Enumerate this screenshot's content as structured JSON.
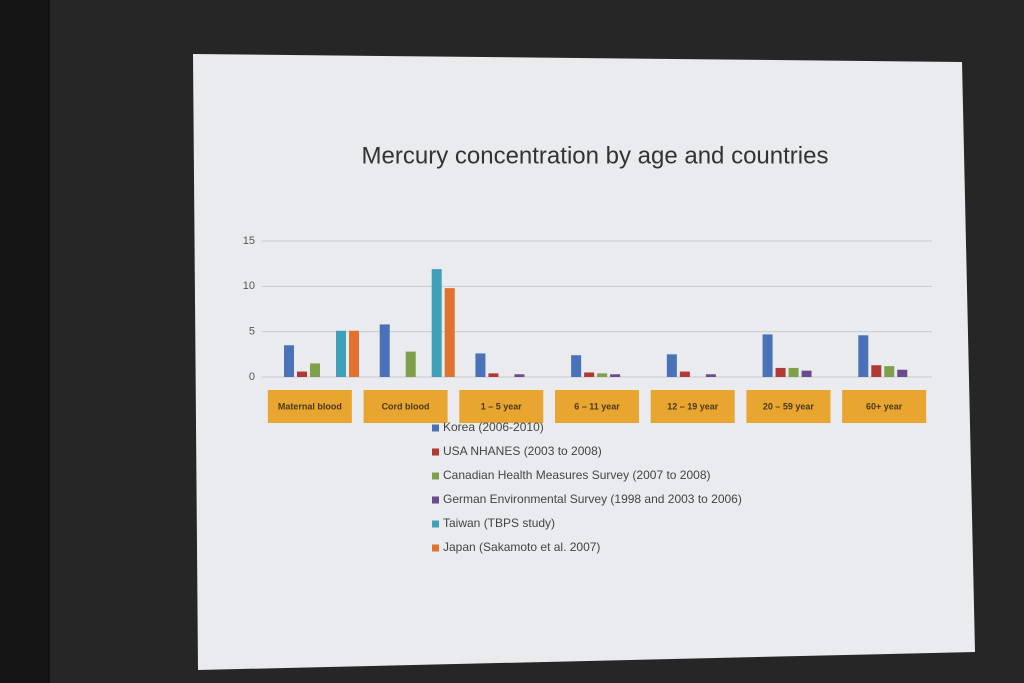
{
  "chart_data": {
    "type": "bar",
    "title": "Mercury concentration by age and countries",
    "categories": [
      "Maternal blood",
      "Cord blood",
      "1 – 5 year",
      "6 – 11 year",
      "12 – 19 year",
      "20 – 59 year",
      "60+ year"
    ],
    "series": [
      {
        "name": "Korea (2006-2010)",
        "color": "#4a72b8",
        "values": [
          3.5,
          5.8,
          2.6,
          2.4,
          2.5,
          4.7,
          4.6
        ]
      },
      {
        "name": "USA NHANES (2003 to 2008)",
        "color": "#b03a36",
        "values": [
          0.6,
          null,
          0.4,
          0.5,
          0.6,
          1.0,
          1.3
        ]
      },
      {
        "name": "Canadian Health Measures Survey (2007 to 2008)",
        "color": "#7ea04a",
        "values": [
          1.5,
          2.8,
          null,
          0.4,
          null,
          1.0,
          1.2
        ]
      },
      {
        "name": "German Environmental Survey (1998 and 2003 to 2006)",
        "color": "#6b4a8e",
        "values": [
          null,
          null,
          0.3,
          0.3,
          0.3,
          0.7,
          0.8
        ]
      },
      {
        "name": "Taiwan (TBPS study)",
        "color": "#3fa0b8",
        "values": [
          5.1,
          11.9,
          null,
          null,
          null,
          null,
          null
        ]
      },
      {
        "name": "Japan (Sakamoto et al. 2007)",
        "color": "#e0712e",
        "values": [
          5.1,
          9.8,
          null,
          null,
          null,
          null,
          null
        ]
      }
    ],
    "ylim": [
      0,
      15
    ],
    "yticks": [
      0,
      5,
      10,
      15
    ],
    "grid": true,
    "category_box_color": "#e8a530"
  }
}
